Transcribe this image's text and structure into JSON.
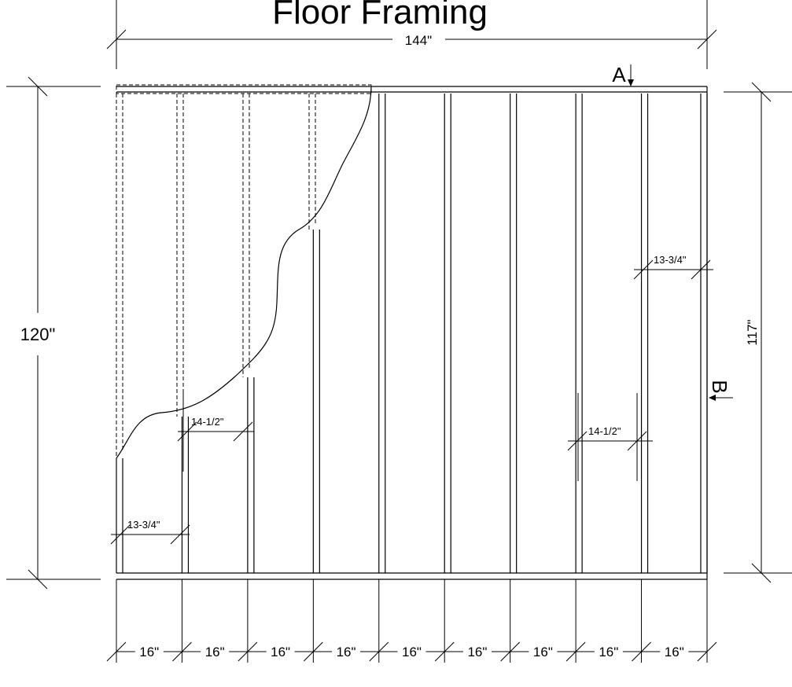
{
  "title": "Floor Framing",
  "dims": {
    "overall_width": "144\"",
    "overall_length": "120\"",
    "inner_length": "117\"",
    "bay_spacing": "16\"",
    "bay_count": 9,
    "gap_left_bottom": "13-3/4\"",
    "gap_left_mid": "14-1/2\"",
    "gap_right_mid": "14-1/2\"",
    "gap_right_top": "13-3/4\""
  },
  "sections": {
    "a": "A",
    "b": "B"
  }
}
